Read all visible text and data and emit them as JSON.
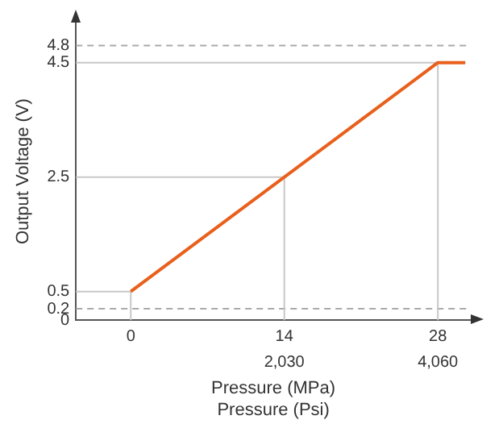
{
  "chart_data": {
    "type": "line",
    "xlabel": "Pressure (MPa)",
    "x2label": "Pressure (Psi)",
    "ylabel": "Output Voltage (V)",
    "x": [
      0,
      28,
      30.5
    ],
    "series": [
      {
        "color": "#e8601c",
        "values": [
          0.5,
          4.5,
          4.5
        ]
      }
    ],
    "xlim": [
      -5,
      31
    ],
    "xticks": [
      0,
      14,
      28
    ],
    "x2lim": [
      -725,
      4495
    ],
    "x2ticks": [
      {
        "value": 2030,
        "label": "2,030"
      },
      {
        "value": 4060,
        "label": "4,060"
      }
    ],
    "ylim": [
      0,
      5.2
    ],
    "yticks": [
      0,
      0.2,
      0.5,
      2.5,
      4.5,
      4.8
    ],
    "ref_lines": [
      {
        "axis": "y",
        "value": 4.8,
        "line_style": "dashed",
        "color": "#aaaaaa"
      },
      {
        "axis": "y",
        "value": 0.2,
        "line_style": "dashed",
        "color": "#aaaaaa"
      },
      {
        "axis": "y",
        "value": 4.5,
        "line_style": "solid",
        "color": "#c8c8c8"
      },
      {
        "axis": "y",
        "value": 2.5,
        "line_style": "solid",
        "color": "#c8c8c8"
      },
      {
        "axis": "y",
        "value": 0.5,
        "line_style": "solid",
        "color": "#c8c8c8"
      },
      {
        "axis": "x",
        "value": 0,
        "line_style": "solid",
        "color": "#c8c8c8"
      },
      {
        "axis": "x",
        "value": 14,
        "line_style": "solid",
        "color": "#c8c8c8"
      },
      {
        "axis": "x",
        "value": 28,
        "line_style": "solid",
        "color": "#c8c8c8"
      }
    ],
    "grid": false,
    "legend": false,
    "marker": "none",
    "line_style": "solid"
  }
}
